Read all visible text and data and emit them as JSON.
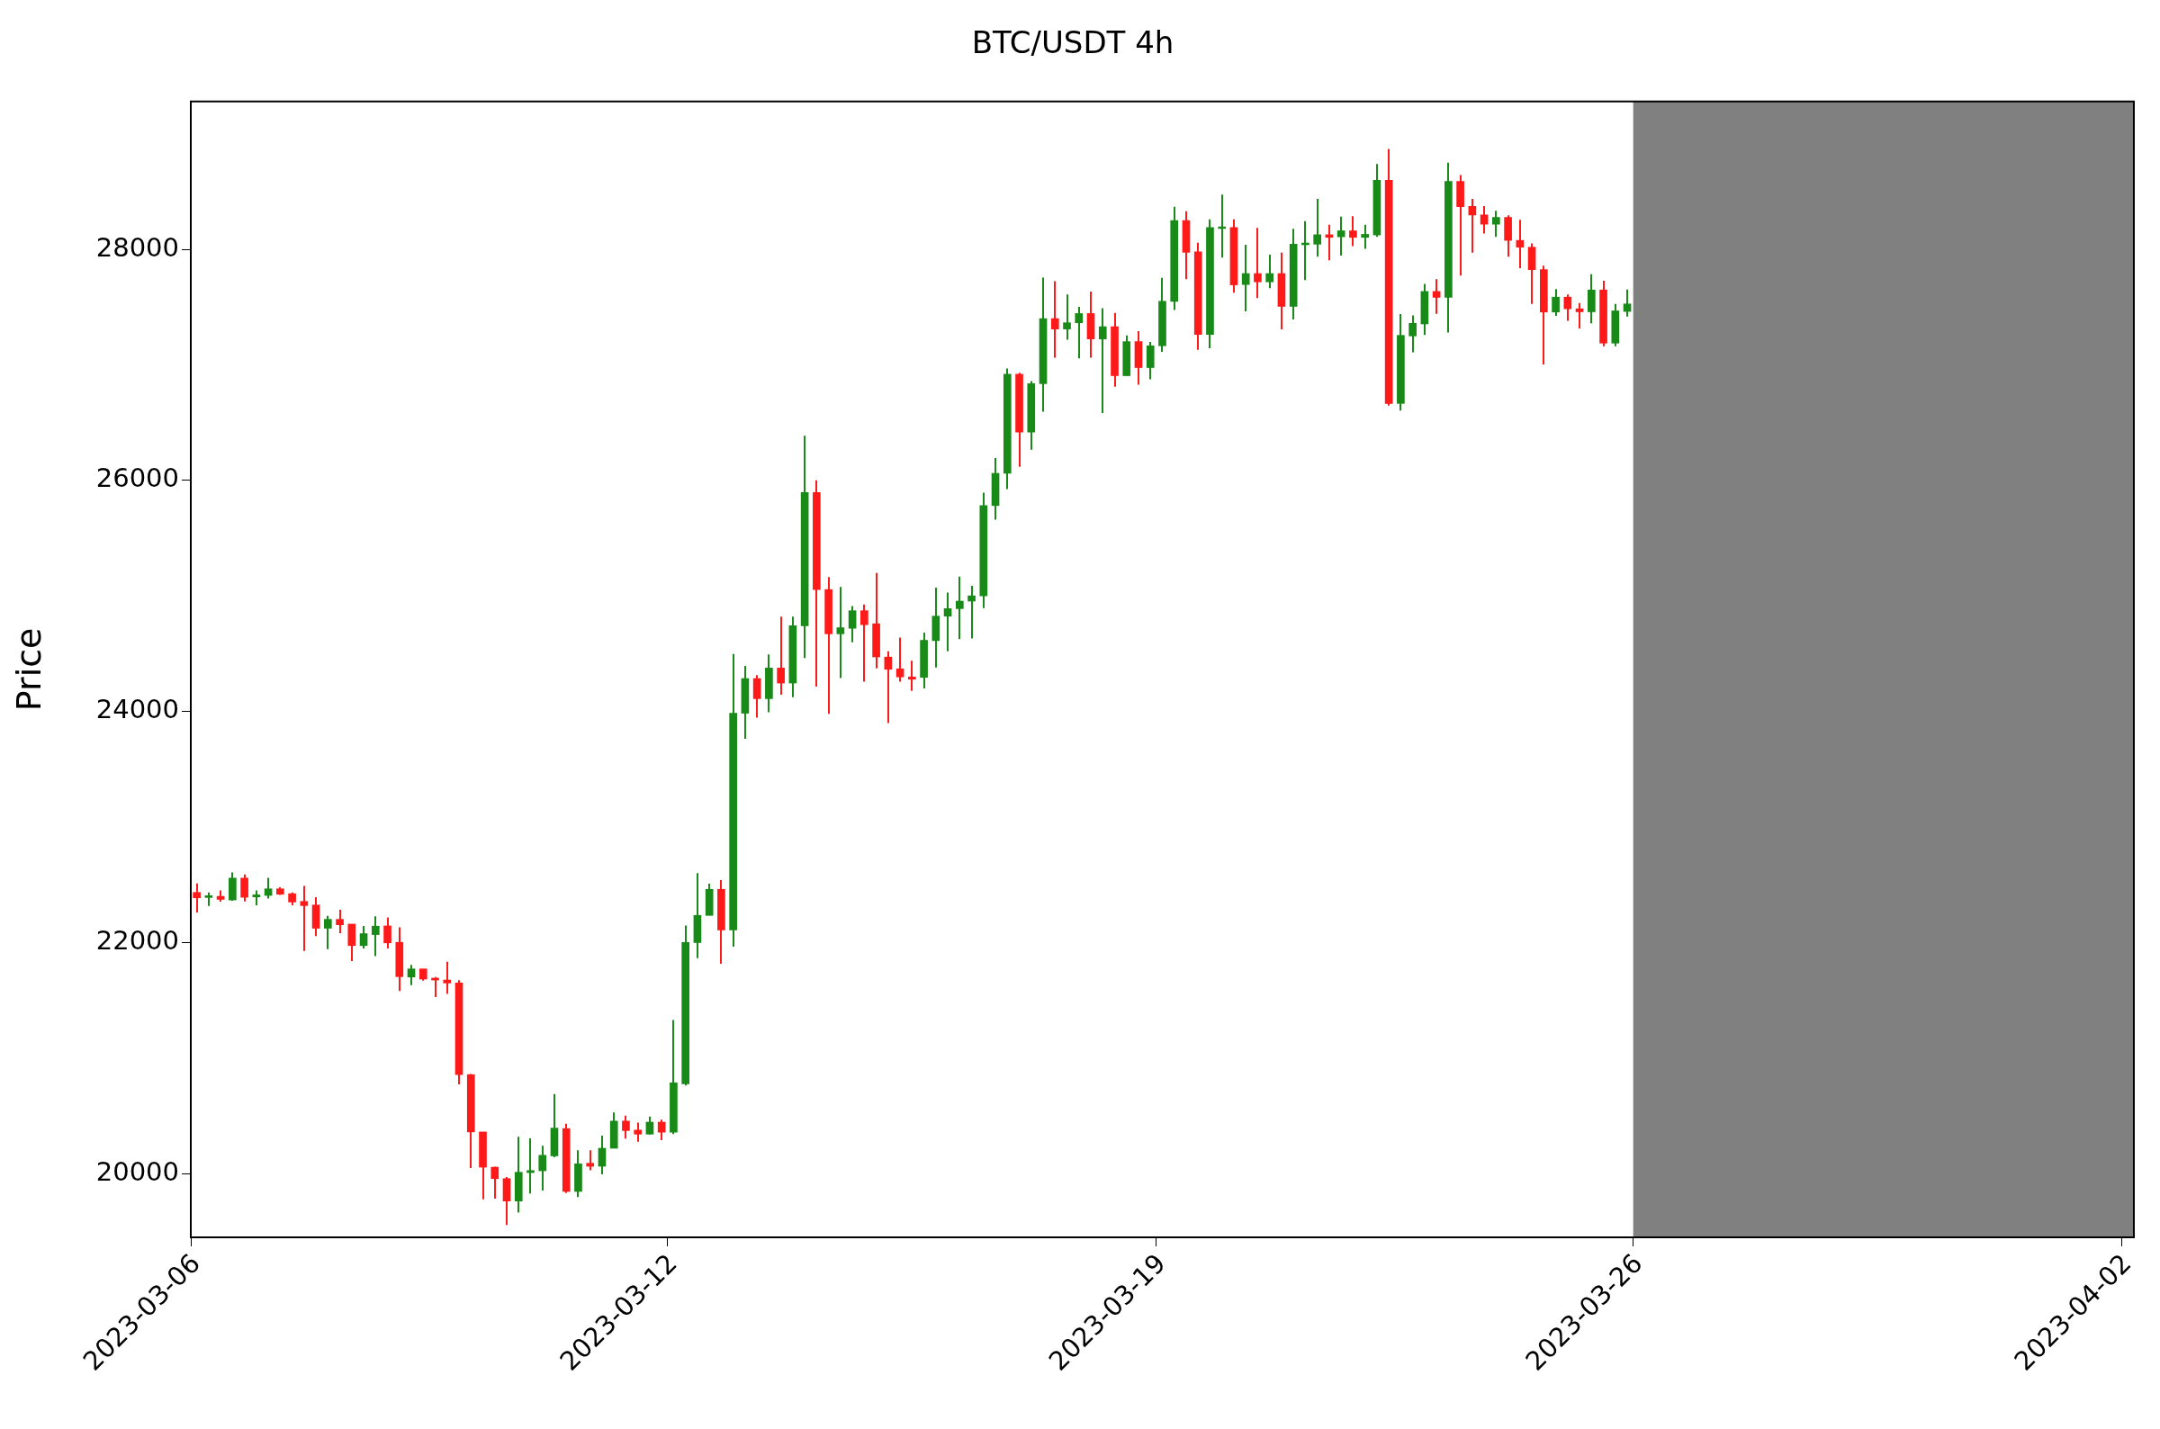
{
  "chart_data": {
    "type": "candlestick",
    "title": "BTC/USDT 4h",
    "ylabel": "Price",
    "categories": [
      "2023-03-06",
      null,
      null,
      null,
      null,
      null,
      null,
      null,
      null,
      null,
      null,
      null,
      null,
      null,
      null,
      null,
      null,
      null,
      null,
      null,
      null,
      null,
      null,
      null,
      null,
      null,
      null,
      null,
      null,
      null,
      null,
      null,
      null,
      null,
      null,
      null,
      null,
      null,
      null,
      null,
      "2023-03-12",
      null,
      null,
      null,
      null,
      null,
      null,
      null,
      null,
      null,
      null,
      null,
      null,
      null,
      null,
      null,
      null,
      null,
      null,
      null,
      null,
      null,
      null,
      null,
      null,
      null,
      null,
      null,
      null,
      null,
      null,
      null,
      null,
      null,
      null,
      null,
      null,
      null,
      null,
      null,
      null,
      "2023-03-19",
      null,
      null,
      null,
      null,
      null,
      null,
      null,
      null,
      null,
      null,
      null,
      null,
      null,
      null,
      null,
      null,
      null,
      null,
      null,
      null,
      null,
      null,
      null,
      null,
      null,
      null,
      null,
      null,
      null,
      null,
      null,
      null,
      null,
      null,
      null,
      null,
      null,
      null,
      null,
      "2023-03-26",
      null,
      null,
      null,
      null,
      null,
      null,
      null,
      null,
      null,
      null,
      null,
      null,
      null,
      null,
      null,
      null,
      null,
      null,
      null,
      null,
      null,
      null,
      null,
      null,
      null,
      null,
      null,
      null,
      null,
      null,
      null,
      null,
      null,
      null,
      null,
      null,
      null,
      null,
      null,
      null,
      "2023-04-02"
    ],
    "ohlc": [
      [
        22435,
        22512,
        22262,
        22388
      ],
      [
        22391,
        22435,
        22318,
        22396
      ],
      [
        22401,
        22453,
        22355,
        22375
      ],
      [
        22370,
        22608,
        22362,
        22559
      ],
      [
        22559,
        22590,
        22357,
        22393
      ],
      [
        22396,
        22453,
        22324,
        22414
      ],
      [
        22409,
        22561,
        22383,
        22466
      ],
      [
        22466,
        22479,
        22414,
        22419
      ],
      [
        22424,
        22435,
        22324,
        22352
      ],
      [
        22357,
        22492,
        21928,
        22321
      ],
      [
        22326,
        22393,
        22057,
        22125
      ],
      [
        22125,
        22233,
        21944,
        22202
      ],
      [
        22202,
        22285,
        22083,
        22155
      ],
      [
        22161,
        22161,
        21840,
        21975
      ],
      [
        21975,
        22145,
        21949,
        22078
      ],
      [
        22070,
        22228,
        21884,
        22143
      ],
      [
        22145,
        22218,
        21949,
        21998
      ],
      [
        22003,
        22132,
        21582,
        21706
      ],
      [
        21703,
        21807,
        21633,
        21773
      ],
      [
        21773,
        21773,
        21672,
        21685
      ],
      [
        21693,
        21703,
        21530,
        21677
      ],
      [
        21677,
        21835,
        21556,
        21651
      ],
      [
        21651,
        21675,
        20773,
        20858
      ],
      [
        20858,
        20863,
        20049,
        20362
      ],
      [
        20362,
        20362,
        19780,
        20057
      ],
      [
        20057,
        20062,
        19785,
        19958
      ],
      [
        19958,
        19971,
        19557,
        19764
      ],
      [
        19764,
        20320,
        19664,
        20013
      ],
      [
        20010,
        20307,
        19829,
        20028
      ],
      [
        20026,
        20243,
        19855,
        20160
      ],
      [
        20155,
        20690,
        20144,
        20395
      ],
      [
        20391,
        20434,
        19834,
        19847
      ],
      [
        19847,
        20204,
        19799,
        20086
      ],
      [
        20091,
        20204,
        20030,
        20065
      ],
      [
        20065,
        20330,
        19995,
        20221
      ],
      [
        20221,
        20530,
        20221,
        20456
      ],
      [
        20456,
        20504,
        20304,
        20374
      ],
      [
        20378,
        20443,
        20278,
        20343
      ],
      [
        20343,
        20495,
        20339,
        20447
      ],
      [
        20447,
        20469,
        20291,
        20360
      ],
      [
        20360,
        21331,
        20343,
        20787
      ],
      [
        20778,
        22149,
        20765,
        22001
      ],
      [
        22001,
        22602,
        21866,
        22236
      ],
      [
        22236,
        22510,
        22236,
        22462
      ],
      [
        22462,
        22541,
        21818,
        22110
      ],
      [
        22110,
        24499,
        21966,
        23986
      ],
      [
        23986,
        24395,
        23764,
        24286
      ],
      [
        24286,
        24316,
        23947,
        24112
      ],
      [
        24112,
        24495,
        23994,
        24377
      ],
      [
        24377,
        24821,
        24147,
        24247
      ],
      [
        24247,
        24821,
        24125,
        24743
      ],
      [
        24743,
        26388,
        24464,
        25896
      ],
      [
        25896,
        26001,
        24216,
        25056
      ],
      [
        25056,
        25165,
        23981,
        24673
      ],
      [
        24673,
        25078,
        24290,
        24726
      ],
      [
        24721,
        24913,
        24599,
        24873
      ],
      [
        24873,
        24926,
        24260,
        24752
      ],
      [
        24760,
        25200,
        24373,
        24473
      ],
      [
        24472,
        24521,
        23900,
        24366
      ],
      [
        24370,
        24640,
        24260,
        24300
      ],
      [
        24300,
        24440,
        24180,
        24280
      ],
      [
        24296,
        24684,
        24200,
        24617
      ],
      [
        24614,
        25072,
        24382,
        24826
      ],
      [
        24826,
        25031,
        24521,
        24891
      ],
      [
        24891,
        25168,
        24627,
        24956
      ],
      [
        24956,
        25088,
        24632,
        25002
      ],
      [
        25002,
        25894,
        24896,
        25783
      ],
      [
        25783,
        26194,
        25661,
        26062
      ],
      [
        26062,
        26969,
        25925,
        26920
      ],
      [
        26920,
        26933,
        26119,
        26419
      ],
      [
        26419,
        26861,
        26266,
        26838
      ],
      [
        26838,
        27755,
        26595,
        27401
      ],
      [
        27401,
        27724,
        27062,
        27311
      ],
      [
        27311,
        27610,
        27218,
        27365
      ],
      [
        27365,
        27502,
        27057,
        27445
      ],
      [
        27445,
        27636,
        27062,
        27225
      ],
      [
        27225,
        27492,
        26584,
        27331
      ],
      [
        27331,
        27450,
        26812,
        26907
      ],
      [
        26907,
        27256,
        26907,
        27202
      ],
      [
        27202,
        27293,
        26830,
        26977
      ],
      [
        26977,
        27199,
        26876,
        27166
      ],
      [
        27166,
        27753,
        27114,
        27551
      ],
      [
        27551,
        28370,
        27476,
        28250
      ],
      [
        28250,
        28330,
        27742,
        27975
      ],
      [
        27980,
        28058,
        27130,
        27264
      ],
      [
        27264,
        28260,
        27145,
        28190
      ],
      [
        28180,
        28475,
        27930,
        28195
      ],
      [
        28190,
        28260,
        27626,
        27693
      ],
      [
        27696,
        28040,
        27463,
        27791
      ],
      [
        27791,
        28187,
        27579,
        27719
      ],
      [
        27719,
        27954,
        27665,
        27791
      ],
      [
        27791,
        27972,
        27308,
        27507
      ],
      [
        27507,
        28179,
        27393,
        28045
      ],
      [
        28040,
        28244,
        27735,
        28047
      ],
      [
        28045,
        28438,
        27936,
        28127
      ],
      [
        28127,
        28213,
        27905,
        28104
      ],
      [
        28109,
        28283,
        27946,
        28161
      ],
      [
        28161,
        28288,
        28029,
        28104
      ],
      [
        28104,
        28213,
        28006,
        28130
      ],
      [
        28125,
        28740,
        28109,
        28598
      ],
      [
        28598,
        28869,
        26649,
        26667
      ],
      [
        26667,
        27440,
        26605,
        27256
      ],
      [
        27251,
        27429,
        27109,
        27360
      ],
      [
        27355,
        27701,
        27259,
        27636
      ],
      [
        27636,
        27742,
        27442,
        27585
      ],
      [
        27585,
        28750,
        27280,
        28588
      ],
      [
        28588,
        28644,
        27773,
        28370
      ],
      [
        28373,
        28438,
        27972,
        28298
      ],
      [
        28298,
        28376,
        28138,
        28218
      ],
      [
        28218,
        28334,
        28109,
        28277
      ],
      [
        28277,
        28295,
        27936,
        28078
      ],
      [
        28078,
        28257,
        27838,
        28019
      ],
      [
        28019,
        28052,
        27528,
        27825
      ],
      [
        27825,
        27859,
        27005,
        27458
      ],
      [
        27458,
        27657,
        27424,
        27587
      ],
      [
        27587,
        27610,
        27383,
        27486
      ],
      [
        27486,
        27535,
        27316,
        27460
      ],
      [
        27460,
        27786,
        27360,
        27649
      ],
      [
        27649,
        27729,
        27163,
        27189
      ],
      [
        27189,
        27528,
        27163,
        27468
      ],
      [
        27463,
        27652,
        27419,
        27528
      ],
      null,
      null,
      null,
      null,
      null,
      null,
      null,
      null,
      null,
      null,
      null,
      null,
      null,
      null,
      null,
      null,
      null,
      null,
      null,
      null,
      null,
      null,
      null,
      null,
      null,
      null,
      null,
      null,
      null,
      null,
      null,
      null,
      null,
      null,
      null,
      null,
      null,
      null,
      null,
      null,
      null,
      null
    ],
    "colors": [
      "#ff1a1a",
      "#178a17",
      "#ff1a1a",
      "#178a17",
      "#ff1a1a",
      "#178a17",
      "#178a17",
      "#ff1a1a",
      "#ff1a1a",
      "#ff1a1a",
      "#ff1a1a",
      "#178a17",
      "#ff1a1a",
      "#ff1a1a",
      "#178a17",
      "#178a17",
      "#ff1a1a",
      "#ff1a1a",
      "#178a17",
      "#ff1a1a",
      "#ff1a1a",
      "#ff1a1a",
      "#ff1a1a",
      "#ff1a1a",
      "#ff1a1a",
      "#ff1a1a",
      "#ff1a1a",
      "#178a17",
      "#178a17",
      "#178a17",
      "#178a17",
      "#ff1a1a",
      "#178a17",
      "#ff1a1a",
      "#178a17",
      "#178a17",
      "#ff1a1a",
      "#ff1a1a",
      "#178a17",
      "#ff1a1a",
      "#178a17",
      "#178a17",
      "#178a17",
      "#178a17",
      "#ff1a1a",
      "#178a17",
      "#178a17",
      "#ff1a1a",
      "#178a17",
      "#ff1a1a",
      "#178a17",
      "#178a17",
      "#ff1a1a",
      "#ff1a1a",
      "#178a17",
      "#178a17",
      "#ff1a1a",
      "#ff1a1a",
      "#ff1a1a",
      "#ff1a1a",
      "#ff1a1a",
      "#178a17",
      "#178a17",
      "#178a17",
      "#178a17",
      "#178a17",
      "#178a17",
      "#178a17",
      "#178a17",
      "#ff1a1a",
      "#178a17",
      "#178a17",
      "#ff1a1a",
      "#178a17",
      "#178a17",
      "#ff1a1a",
      "#178a17",
      "#ff1a1a",
      "#178a17",
      "#ff1a1a",
      "#178a17",
      "#178a17",
      "#178a17",
      "#ff1a1a",
      "#ff1a1a",
      "#178a17",
      "#178a17",
      "#ff1a1a",
      "#178a17",
      "#ff1a1a",
      "#178a17",
      "#ff1a1a",
      "#178a17",
      "#178a17",
      "#178a17",
      "#ff1a1a",
      "#178a17",
      "#ff1a1a",
      "#178a17",
      "#178a17",
      "#ff1a1a",
      "#178a17",
      "#178a17",
      "#178a17",
      "#ff1a1a",
      "#178a17",
      "#ff1a1a",
      "#ff1a1a",
      "#ff1a1a",
      "#178a17",
      "#ff1a1a",
      "#ff1a1a",
      "#ff1a1a",
      "#ff1a1a",
      "#178a17",
      "#ff1a1a",
      "#ff1a1a",
      "#178a17",
      "#ff1a1a",
      "#178a17",
      "#178a17",
      null,
      null,
      null,
      null,
      null,
      null,
      null,
      null,
      null,
      null,
      null,
      null,
      null,
      null,
      null,
      null,
      null,
      null,
      null,
      null,
      null,
      null,
      null,
      null,
      null,
      null,
      null,
      null,
      null,
      null,
      null,
      null,
      null,
      null,
      null,
      null,
      null,
      null,
      null,
      null,
      null,
      null
    ],
    "ylim": [
      19450,
      29280
    ],
    "yticks": [
      20000,
      22000,
      24000,
      26000,
      28000
    ],
    "bands": [
      {
        "axis": "x",
        "from": "2023-03-26",
        "to": "2023-04-02",
        "color": "#808080"
      }
    ],
    "grid": false,
    "legend": false
  }
}
